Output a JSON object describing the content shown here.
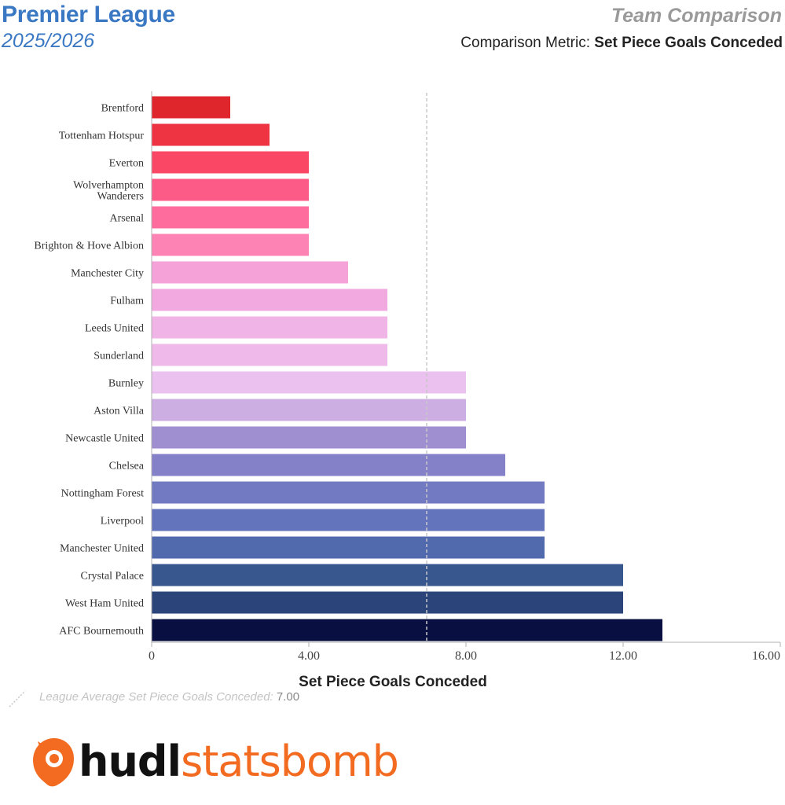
{
  "header": {
    "league": "Premier League",
    "season": "2025/2026",
    "report_title": "Team Comparison",
    "metric_prefix": "Comparison Metric:",
    "metric_name": "Set Piece Goals Conceded"
  },
  "chart_data": {
    "type": "bar",
    "orientation": "horizontal",
    "categories": [
      "Brentford",
      "Tottenham Hotspur",
      "Everton",
      "Wolverhampton Wanderers",
      "Arsenal",
      "Brighton & Hove Albion",
      "Manchester City",
      "Fulham",
      "Leeds United",
      "Sunderland",
      "Burnley",
      "Aston Villa",
      "Newcastle United",
      "Chelsea",
      "Nottingham Forest",
      "Liverpool",
      "Manchester United",
      "Crystal Palace",
      "West Ham United",
      "AFC Bournemouth"
    ],
    "category_lines": [
      [
        "Brentford"
      ],
      [
        "Tottenham Hotspur"
      ],
      [
        "Everton"
      ],
      [
        "Wolverhampton",
        "Wanderers"
      ],
      [
        "Arsenal"
      ],
      [
        "Brighton & Hove Albion"
      ],
      [
        "Manchester City"
      ],
      [
        "Fulham"
      ],
      [
        "Leeds United"
      ],
      [
        "Sunderland"
      ],
      [
        "Burnley"
      ],
      [
        "Aston Villa"
      ],
      [
        "Newcastle United"
      ],
      [
        "Chelsea"
      ],
      [
        "Nottingham Forest"
      ],
      [
        "Liverpool"
      ],
      [
        "Manchester United"
      ],
      [
        "Crystal Palace"
      ],
      [
        "West Ham United"
      ],
      [
        "AFC Bournemouth"
      ]
    ],
    "values": [
      2,
      3,
      4,
      4,
      4,
      4,
      5,
      6,
      6,
      6,
      8,
      8,
      8,
      9,
      10,
      10,
      10,
      12,
      12,
      13
    ],
    "colors": [
      "#e0262d",
      "#ee3343",
      "#fb4766",
      "#fd5b87",
      "#fd6c9d",
      "#fd83b5",
      "#f4a2d8",
      "#f2a9e0",
      "#f0b4e6",
      "#efbaea",
      "#eac1ef",
      "#cdaee3",
      "#9f8ed0",
      "#8581c9",
      "#727ac2",
      "#6474bc",
      "#516aad",
      "#38578f",
      "#2b4479",
      "#0a0f42"
    ],
    "xlabel": "Set Piece Goals Conceded",
    "xlim": [
      0,
      16
    ],
    "xticks": [
      0,
      4,
      8,
      12,
      16
    ],
    "xtick_labels": [
      "0",
      "4.00",
      "8.00",
      "12.00",
      "16.00"
    ],
    "grid": false,
    "reference_line": {
      "value": 7,
      "label": "League Average Set Piece Goals Conceded:",
      "value_label": "7.00"
    }
  },
  "logo": {
    "text_bold": "hudl",
    "text_light": "statsbomb",
    "accent_color": "#f26b21"
  }
}
